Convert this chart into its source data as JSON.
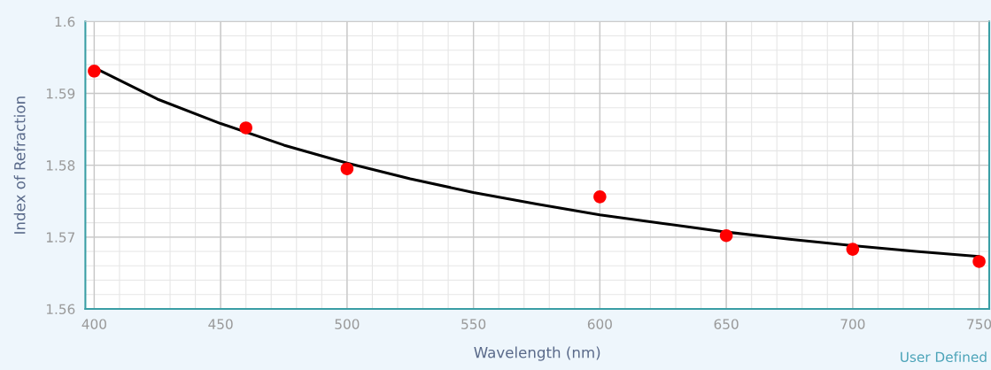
{
  "chart_data": {
    "type": "scatter",
    "xlabel": "Wavelength (nm)",
    "ylabel": "Index of Refraction",
    "annotations": [
      "User Defined"
    ],
    "series": [
      {
        "color": "#ff0000",
        "marker": "circle",
        "x": [
          400,
          460,
          500,
          600,
          650,
          700,
          750
        ],
        "values": [
          1.5931,
          1.5852,
          1.5795,
          1.5756,
          1.5702,
          1.5683,
          1.5666
        ]
      },
      {
        "type": "line",
        "color": "#000000",
        "line_style": "solid",
        "x": [
          401,
          425,
          450,
          475,
          500,
          525,
          550,
          575,
          600,
          625,
          650,
          675,
          700,
          725,
          750
        ],
        "values": [
          1.5934,
          1.5892,
          1.5858,
          1.5828,
          1.5803,
          1.5781,
          1.5762,
          1.5746,
          1.5731,
          1.5719,
          1.5707,
          1.5697,
          1.5688,
          1.568,
          1.5673
        ]
      }
    ],
    "xlim": [
      396.5,
      754
    ],
    "ylim": [
      1.56,
      1.6
    ],
    "xticks": [
      400,
      450,
      500,
      550,
      600,
      650,
      700,
      750
    ],
    "yticks": [
      1.56,
      1.57,
      1.58,
      1.59,
      1.6
    ],
    "grid": true
  }
}
